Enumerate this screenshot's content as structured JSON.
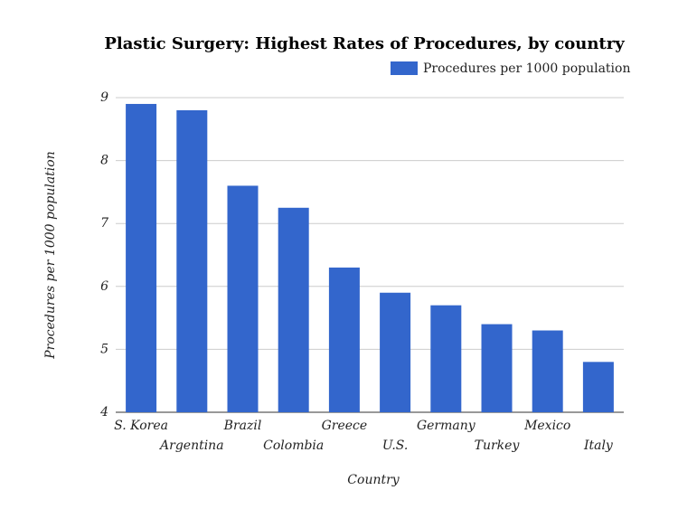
{
  "chart_data": {
    "type": "bar",
    "title": "Plastic Surgery: Highest Rates of Procedures, by country",
    "categories": [
      "S. Korea",
      "Argentina",
      "Brazil",
      "Colombia",
      "Greece",
      "U.S.",
      "Germany",
      "Turkey",
      "Mexico",
      "Italy"
    ],
    "series": [
      {
        "name": "Procedures per 1000 population",
        "color": "#3366cc",
        "values": [
          8.9,
          8.8,
          7.6,
          7.25,
          6.3,
          5.9,
          5.7,
          5.4,
          5.3,
          4.8
        ]
      }
    ],
    "x_label": "Country",
    "y_label": "Procedures per 1000 population",
    "ylim": [
      4,
      9
    ],
    "yticks": [
      4,
      5,
      6,
      7,
      8,
      9
    ],
    "grid": true,
    "legend": "top-right"
  }
}
